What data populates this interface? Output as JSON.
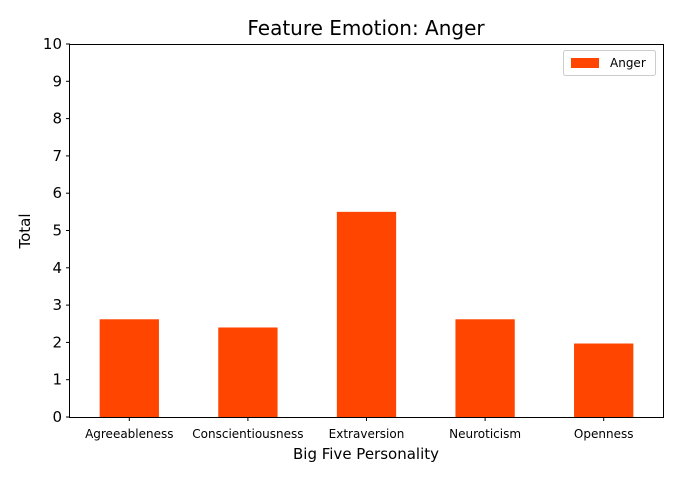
{
  "chart_data": {
    "type": "bar",
    "title": "Feature Emotion: Anger",
    "xlabel": "Big Five Personality",
    "ylabel": "Total",
    "categories": [
      "Agreeableness",
      "Conscientiousness",
      "Extraversion",
      "Neuroticism",
      "Openness"
    ],
    "series": [
      {
        "name": "Anger",
        "values": [
          2.62,
          2.4,
          5.5,
          2.62,
          1.97
        ],
        "color": "#ff4500"
      }
    ],
    "ylim": [
      0,
      10
    ],
    "yticks": [
      "0",
      "1",
      "2",
      "3",
      "4",
      "5",
      "6",
      "7",
      "8",
      "9",
      "10"
    ],
    "grid": false,
    "legend_position": "top-right"
  }
}
